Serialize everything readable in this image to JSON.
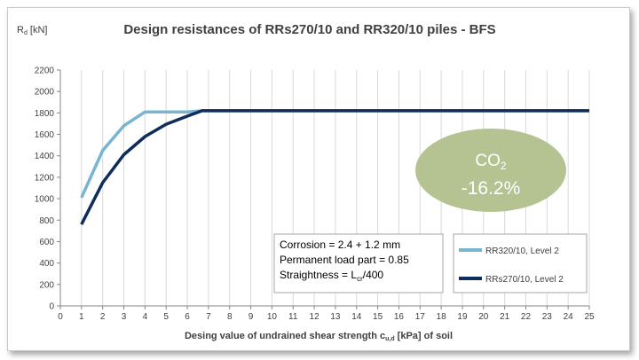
{
  "chart_data": {
    "type": "line",
    "title": "Design resistances of RRs270/10 and RR320/10 piles - BFS",
    "ylabel_main": "R",
    "ylabel_sub": "d",
    "ylabel_unit": " [kN]",
    "xlabel_pre": "Desing value of undrained shear strength c",
    "xlabel_sub": "u,d",
    "xlabel_post": " [kPa]  of soil",
    "xlim": [
      0,
      25
    ],
    "ylim": [
      0,
      2200
    ],
    "xticks": [
      0,
      1,
      2,
      3,
      4,
      5,
      6,
      7,
      8,
      9,
      10,
      11,
      12,
      13,
      14,
      15,
      16,
      17,
      18,
      19,
      20,
      21,
      22,
      23,
      24,
      25
    ],
    "yticks": [
      0,
      200,
      400,
      600,
      800,
      1000,
      1200,
      1400,
      1600,
      1800,
      2000,
      2200
    ],
    "grid": "vertical",
    "legend_position": "right",
    "series": [
      {
        "name": "RR320/10, Level 2",
        "color": "#79b4d0",
        "points": [
          [
            1,
            1010
          ],
          [
            2,
            1450
          ],
          [
            3,
            1680
          ],
          [
            4,
            1810
          ],
          [
            5,
            1810
          ],
          [
            6,
            1810
          ],
          [
            6.7,
            1820
          ],
          [
            25,
            1820
          ]
        ]
      },
      {
        "name": "RRs270/10, Level 2",
        "color": "#0f2c5a",
        "points": [
          [
            1,
            760
          ],
          [
            2,
            1150
          ],
          [
            3,
            1410
          ],
          [
            4,
            1580
          ],
          [
            5,
            1695
          ],
          [
            6,
            1770
          ],
          [
            6.7,
            1820
          ],
          [
            25,
            1820
          ]
        ]
      }
    ],
    "annotation_box": {
      "line1": "Corrosion = 2.4 + 1.2 mm",
      "line2": "Permanent load part = 0.85",
      "line3_pre": "Straightness = L",
      "line3_sub": "cr",
      "line3_post": "/400"
    },
    "badge": {
      "line1_main": "CO",
      "line1_sub": "2",
      "line2": "-16.2%",
      "fill": "#b4c391",
      "text_color": "#ffffff"
    }
  }
}
